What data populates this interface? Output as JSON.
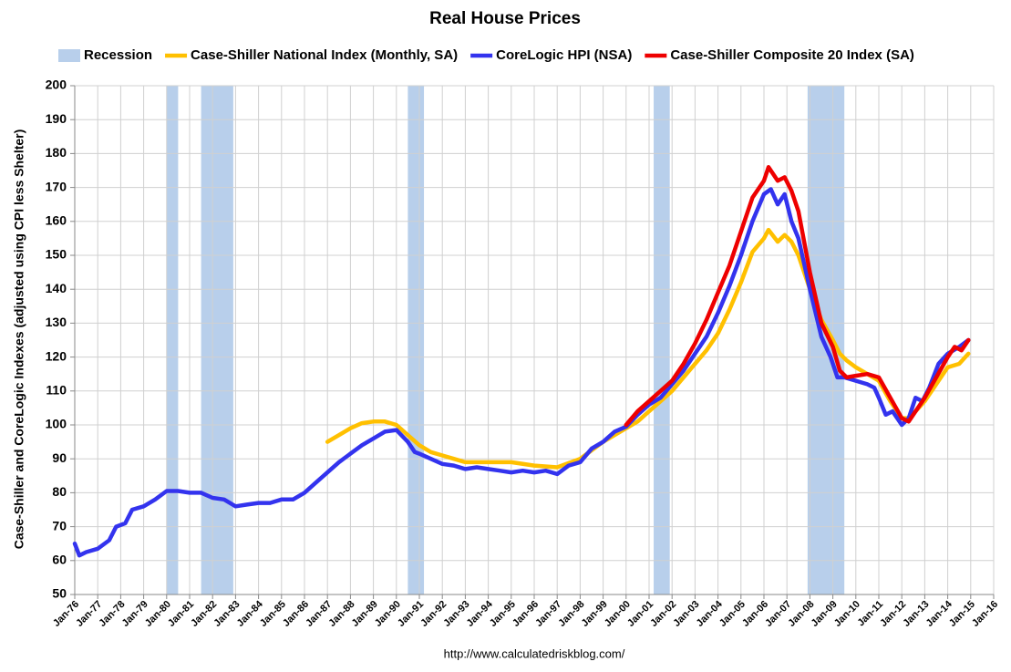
{
  "chart_data": {
    "type": "line",
    "title": "Real House Prices",
    "y_label": "Case-Shiller and CoreLogic Indexes (adjusted using CPI less Shelter)",
    "footer": "http://www.calculatedriskblog.com/",
    "xlim": [
      1976,
      2016
    ],
    "xticks": [
      {
        "value": 1976,
        "label": "Jan-76"
      },
      {
        "value": 1977,
        "label": "Jan-77"
      },
      {
        "value": 1978,
        "label": "Jan-78"
      },
      {
        "value": 1979,
        "label": "Jan-79"
      },
      {
        "value": 1980,
        "label": "Jan-80"
      },
      {
        "value": 1981,
        "label": "Jan-81"
      },
      {
        "value": 1982,
        "label": "Jan-82"
      },
      {
        "value": 1983,
        "label": "Jan-83"
      },
      {
        "value": 1984,
        "label": "Jan-84"
      },
      {
        "value": 1985,
        "label": "Jan-85"
      },
      {
        "value": 1986,
        "label": "Jan-86"
      },
      {
        "value": 1987,
        "label": "Jan-87"
      },
      {
        "value": 1988,
        "label": "Jan-88"
      },
      {
        "value": 1989,
        "label": "Jan-89"
      },
      {
        "value": 1990,
        "label": "Jan-90"
      },
      {
        "value": 1991,
        "label": "Jan-91"
      },
      {
        "value": 1992,
        "label": "Jan-92"
      },
      {
        "value": 1993,
        "label": "Jan-93"
      },
      {
        "value": 1994,
        "label": "Jan-94"
      },
      {
        "value": 1995,
        "label": "Jan-95"
      },
      {
        "value": 1996,
        "label": "Jan-96"
      },
      {
        "value": 1997,
        "label": "Jan-97"
      },
      {
        "value": 1998,
        "label": "Jan-98"
      },
      {
        "value": 1999,
        "label": "Jan-99"
      },
      {
        "value": 2000,
        "label": "Jan-00"
      },
      {
        "value": 2001,
        "label": "Jan-01"
      },
      {
        "value": 2002,
        "label": "Jan-02"
      },
      {
        "value": 2003,
        "label": "Jan-03"
      },
      {
        "value": 2004,
        "label": "Jan-04"
      },
      {
        "value": 2005,
        "label": "Jan-05"
      },
      {
        "value": 2006,
        "label": "Jan-06"
      },
      {
        "value": 2007,
        "label": "Jan-07"
      },
      {
        "value": 2008,
        "label": "Jan-08"
      },
      {
        "value": 2009,
        "label": "Jan-09"
      },
      {
        "value": 2010,
        "label": "Jan-10"
      },
      {
        "value": 2011,
        "label": "Jan-11"
      },
      {
        "value": 2012,
        "label": "Jan-12"
      },
      {
        "value": 2013,
        "label": "Jan-13"
      },
      {
        "value": 2014,
        "label": "Jan-14"
      },
      {
        "value": 2015,
        "label": "Jan-15"
      },
      {
        "value": 2016,
        "label": "Jan-16"
      }
    ],
    "ylim": [
      50,
      200
    ],
    "yticks": [
      50,
      60,
      70,
      80,
      90,
      100,
      110,
      120,
      130,
      140,
      150,
      160,
      170,
      180,
      190,
      200
    ],
    "grid": true,
    "recessions": {
      "name": "Recession",
      "color": "#b8cfeb",
      "periods": [
        [
          1980.0,
          1980.5
        ],
        [
          1981.5,
          1982.9
        ],
        [
          1990.5,
          1991.2
        ],
        [
          2001.2,
          2001.9
        ],
        [
          2007.9,
          2009.5
        ]
      ]
    },
    "series": [
      {
        "name": "Case-Shiller National Index (Monthly, SA)",
        "color": "#ffc000",
        "x": [
          1987.0,
          1987.5,
          1988.0,
          1988.5,
          1989.0,
          1989.5,
          1990.0,
          1990.5,
          1991.0,
          1991.5,
          1992.0,
          1992.5,
          1993.0,
          1994.0,
          1995.0,
          1996.0,
          1997.0,
          1998.0,
          1999.0,
          2000.0,
          2000.5,
          2001.0,
          2001.5,
          2002.0,
          2002.5,
          2003.0,
          2003.5,
          2004.0,
          2004.5,
          2005.0,
          2005.5,
          2006.0,
          2006.2,
          2006.6,
          2006.9,
          2007.2,
          2007.5,
          2008.0,
          2008.5,
          2009.0,
          2009.3,
          2009.6,
          2010.0,
          2010.5,
          2011.0,
          2011.5,
          2012.0,
          2012.3,
          2012.6,
          2013.0,
          2013.5,
          2014.0,
          2014.5,
          2014.9
        ],
        "values": [
          95,
          97,
          99,
          100.5,
          101,
          101,
          100,
          97,
          94,
          92,
          91,
          90,
          89,
          89,
          89,
          88,
          87.5,
          90,
          95,
          99,
          101,
          104,
          107,
          110,
          114,
          118,
          122,
          127,
          134,
          142,
          151,
          155,
          157.5,
          154,
          156,
          154,
          150,
          140,
          131,
          125,
          121,
          119,
          117,
          115,
          113,
          107,
          102,
          102,
          104,
          107,
          112,
          117,
          118,
          121
        ]
      },
      {
        "name": "CoreLogic HPI (NSA)",
        "color": "#3333ee",
        "x": [
          1976.0,
          1976.2,
          1976.5,
          1977.0,
          1977.5,
          1977.8,
          1978.2,
          1978.5,
          1979.0,
          1979.5,
          1980.0,
          1980.5,
          1981.0,
          1981.5,
          1982.0,
          1982.5,
          1983.0,
          1983.5,
          1984.0,
          1984.5,
          1985.0,
          1985.5,
          1986.0,
          1986.5,
          1987.0,
          1987.5,
          1988.0,
          1988.5,
          1989.0,
          1989.5,
          1990.0,
          1990.5,
          1990.8,
          1991.0,
          1991.5,
          1992.0,
          1992.5,
          1993.0,
          1993.5,
          1994.0,
          1994.5,
          1995.0,
          1995.5,
          1996.0,
          1996.5,
          1997.0,
          1997.5,
          1998.0,
          1998.5,
          1999.0,
          1999.5,
          2000.0,
          2000.5,
          2001.0,
          2001.5,
          2002.0,
          2002.5,
          2003.0,
          2003.5,
          2004.0,
          2004.5,
          2005.0,
          2005.5,
          2006.0,
          2006.3,
          2006.6,
          2006.9,
          2007.2,
          2007.5,
          2008.0,
          2008.5,
          2008.9,
          2009.2,
          2009.5,
          2010.0,
          2010.5,
          2010.8,
          2011.0,
          2011.3,
          2011.6,
          2012.0,
          2012.3,
          2012.6,
          2012.9,
          2013.2,
          2013.6,
          2014.0,
          2014.5,
          2014.9
        ],
        "values": [
          65,
          61.5,
          62.5,
          63.5,
          66,
          70,
          71,
          75,
          76,
          78,
          80.5,
          80.5,
          80,
          80,
          78.5,
          78,
          76,
          76.5,
          77,
          77,
          78,
          78,
          80,
          83,
          86,
          89,
          91.5,
          94,
          96,
          98,
          98.5,
          95,
          92,
          91.5,
          90,
          88.5,
          88,
          87,
          87.5,
          87,
          86.5,
          86,
          86.5,
          86,
          86.5,
          85.5,
          88,
          89,
          93,
          95,
          98,
          99.5,
          103,
          106,
          108,
          112,
          116,
          121,
          126,
          133,
          141,
          150,
          160,
          168,
          169.5,
          165,
          168,
          160,
          155,
          140,
          126,
          120,
          114,
          114,
          113,
          112,
          111,
          108,
          103,
          104,
          100,
          102,
          108,
          107,
          111,
          118,
          121,
          123,
          125
        ]
      },
      {
        "name": "Case-Shiller Composite 20 Index (SA)",
        "color": "#ee0000",
        "x": [
          2000.0,
          2000.5,
          2001.0,
          2001.5,
          2002.0,
          2002.5,
          2003.0,
          2003.5,
          2004.0,
          2004.5,
          2005.0,
          2005.5,
          2006.0,
          2006.2,
          2006.6,
          2006.9,
          2007.2,
          2007.5,
          2008.0,
          2008.5,
          2009.0,
          2009.3,
          2009.6,
          2010.0,
          2010.5,
          2011.0,
          2011.5,
          2012.0,
          2012.3,
          2012.6,
          2013.0,
          2013.5,
          2014.0,
          2014.3,
          2014.6,
          2014.9
        ],
        "values": [
          100,
          104,
          107,
          110,
          113,
          118,
          124,
          131,
          139,
          147,
          157,
          167,
          172,
          176,
          172,
          173,
          169,
          163,
          145,
          130,
          123,
          116,
          114,
          114.5,
          115,
          114,
          108,
          102,
          101,
          104,
          108,
          114,
          120,
          123,
          122,
          125
        ]
      }
    ]
  }
}
